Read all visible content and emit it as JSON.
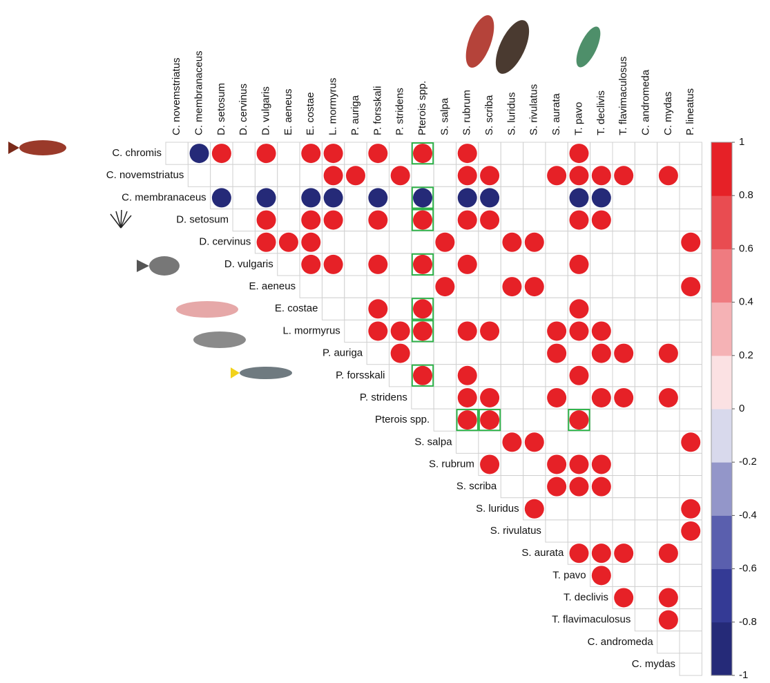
{
  "chart_data": {
    "type": "corrplot",
    "columns": [
      "C. novemstriatus",
      "C. membranaceus",
      "D. setosum",
      "D. cervinus",
      "D. vulgaris",
      "E. aeneus",
      "E. costae",
      "L. mormyrus",
      "P. auriga",
      "P. forsskali",
      "P. stridens",
      "Pterois spp.",
      "S. salpa",
      "S. rubrum",
      "S. scriba",
      "S. luridus",
      "S. rivulatus",
      "S. aurata",
      "T. pavo",
      "T. declivis",
      "T. flavimaculosus",
      "C. andromeda",
      "C. mydas",
      "P. lineatus"
    ],
    "rows": [
      "C. chromis",
      "C. novemstriatus",
      "C. membranaceus",
      "D. setosum",
      "D. cervinus",
      "D. vulgaris",
      "E. aeneus",
      "E. costae",
      "L. mormyrus",
      "P. auriga",
      "P. forsskali",
      "P. stridens",
      "Pterois spp.",
      "S. salpa",
      "S. rubrum",
      "S. scriba",
      "S. luridus",
      "S. rivulatus",
      "S. aurata",
      "T. pavo",
      "T. declivis",
      "T. flavimaculosus",
      "C. andromeda",
      "C. mydas"
    ],
    "values": [
      [
        null,
        -1,
        1,
        null,
        1,
        null,
        1,
        1,
        null,
        1,
        null,
        1,
        null,
        1,
        null,
        null,
        null,
        null,
        1,
        null,
        null,
        null,
        null,
        null
      ],
      [
        null,
        null,
        null,
        null,
        null,
        null,
        null,
        1,
        1,
        null,
        1,
        null,
        null,
        1,
        1,
        null,
        null,
        1,
        1,
        1,
        1,
        null,
        1,
        null
      ],
      [
        null,
        null,
        -1,
        null,
        -1,
        null,
        -1,
        -1,
        null,
        -1,
        null,
        -1,
        null,
        -1,
        -1,
        null,
        null,
        null,
        -1,
        -1,
        null,
        null,
        null,
        null
      ],
      [
        null,
        null,
        null,
        null,
        1,
        null,
        1,
        1,
        null,
        1,
        null,
        1,
        null,
        1,
        1,
        null,
        null,
        null,
        1,
        1,
        null,
        null,
        null,
        null
      ],
      [
        null,
        null,
        null,
        null,
        1,
        1,
        1,
        null,
        null,
        null,
        null,
        null,
        1,
        null,
        null,
        1,
        1,
        null,
        null,
        null,
        null,
        null,
        null,
        1
      ],
      [
        null,
        null,
        null,
        null,
        null,
        null,
        1,
        1,
        null,
        1,
        null,
        1,
        null,
        1,
        null,
        null,
        null,
        null,
        1,
        null,
        null,
        null,
        null,
        null
      ],
      [
        null,
        null,
        null,
        null,
        null,
        null,
        null,
        null,
        null,
        null,
        null,
        null,
        1,
        null,
        null,
        1,
        1,
        null,
        null,
        null,
        null,
        null,
        null,
        1
      ],
      [
        null,
        null,
        null,
        null,
        null,
        null,
        null,
        null,
        null,
        1,
        null,
        1,
        null,
        null,
        null,
        null,
        null,
        null,
        1,
        null,
        null,
        null,
        null,
        null
      ],
      [
        null,
        null,
        null,
        null,
        null,
        null,
        null,
        null,
        null,
        1,
        1,
        1,
        null,
        1,
        1,
        null,
        null,
        1,
        1,
        1,
        null,
        null,
        null,
        null
      ],
      [
        null,
        null,
        null,
        null,
        null,
        null,
        null,
        null,
        null,
        null,
        1,
        null,
        null,
        null,
        null,
        null,
        null,
        1,
        null,
        1,
        1,
        null,
        1,
        null
      ],
      [
        null,
        null,
        null,
        null,
        null,
        null,
        null,
        null,
        null,
        null,
        null,
        1,
        null,
        1,
        null,
        null,
        null,
        null,
        1,
        null,
        null,
        null,
        null,
        null
      ],
      [
        null,
        null,
        null,
        null,
        null,
        null,
        null,
        null,
        null,
        null,
        null,
        null,
        null,
        1,
        1,
        null,
        null,
        1,
        null,
        1,
        1,
        null,
        1,
        null
      ],
      [
        null,
        null,
        null,
        null,
        null,
        null,
        null,
        null,
        null,
        null,
        null,
        null,
        null,
        1,
        1,
        null,
        null,
        null,
        1,
        null,
        null,
        null,
        null,
        null
      ],
      [
        null,
        null,
        null,
        null,
        null,
        null,
        null,
        null,
        null,
        null,
        null,
        null,
        null,
        null,
        null,
        1,
        1,
        null,
        null,
        null,
        null,
        null,
        null,
        1
      ],
      [
        null,
        null,
        null,
        null,
        null,
        null,
        null,
        null,
        null,
        null,
        null,
        null,
        null,
        null,
        1,
        null,
        null,
        1,
        1,
        1,
        null,
        null,
        null,
        null
      ],
      [
        null,
        null,
        null,
        null,
        null,
        null,
        null,
        null,
        null,
        null,
        null,
        null,
        null,
        null,
        null,
        null,
        null,
        1,
        1,
        1,
        null,
        null,
        null,
        null
      ],
      [
        null,
        null,
        null,
        null,
        null,
        null,
        null,
        null,
        null,
        null,
        null,
        null,
        null,
        null,
        null,
        null,
        1,
        null,
        null,
        null,
        null,
        null,
        null,
        1
      ],
      [
        null,
        null,
        null,
        null,
        null,
        null,
        null,
        null,
        null,
        null,
        null,
        null,
        null,
        null,
        null,
        null,
        null,
        null,
        null,
        null,
        null,
        null,
        null,
        1
      ],
      [
        null,
        null,
        null,
        null,
        null,
        null,
        null,
        null,
        null,
        null,
        null,
        null,
        null,
        null,
        null,
        null,
        null,
        null,
        1,
        1,
        1,
        null,
        1,
        null
      ],
      [
        null,
        null,
        null,
        null,
        null,
        null,
        null,
        null,
        null,
        null,
        null,
        null,
        null,
        null,
        null,
        null,
        null,
        null,
        null,
        1,
        null,
        null,
        null,
        null
      ],
      [
        null,
        null,
        null,
        null,
        null,
        null,
        null,
        null,
        null,
        null,
        null,
        null,
        null,
        null,
        null,
        null,
        null,
        null,
        null,
        null,
        1,
        null,
        1,
        null
      ],
      [
        null,
        null,
        null,
        null,
        null,
        null,
        null,
        null,
        null,
        null,
        null,
        null,
        null,
        null,
        null,
        null,
        null,
        null,
        null,
        null,
        null,
        null,
        1,
        null
      ],
      [
        null,
        null,
        null,
        null,
        null,
        null,
        null,
        null,
        null,
        null,
        null,
        null,
        null,
        null,
        null,
        null,
        null,
        null,
        null,
        null,
        null,
        null,
        null,
        null
      ],
      [
        null,
        null,
        null,
        null,
        null,
        null,
        null,
        null,
        null,
        null,
        null,
        null,
        null,
        null,
        null,
        null,
        null,
        null,
        null,
        null,
        null,
        null,
        null,
        null
      ]
    ],
    "highlighted_cells": [
      [
        0,
        11
      ],
      [
        2,
        11
      ],
      [
        3,
        11
      ],
      [
        5,
        11
      ],
      [
        7,
        11
      ],
      [
        8,
        11
      ],
      [
        10,
        11
      ],
      [
        12,
        13
      ],
      [
        12,
        14
      ],
      [
        12,
        18
      ]
    ],
    "highlight_color": "#2fb34a",
    "colorbar": {
      "lim": [
        -1,
        1
      ],
      "ticks": [
        1,
        0.8,
        0.6,
        0.4,
        0.2,
        0,
        -0.2,
        -0.4,
        -0.6,
        -0.8,
        -1
      ],
      "colors": [
        "#252a78",
        "#343a95",
        "#5a5fae",
        "#9396c9",
        "#d8d9ec",
        "#fbe1e3",
        "#f5b2b5",
        "#ef7b80",
        "#e94c51",
        "#e62127"
      ]
    }
  }
}
